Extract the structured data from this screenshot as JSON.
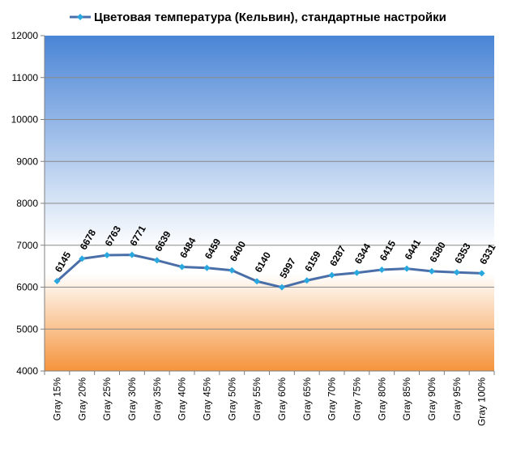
{
  "chart_data": {
    "type": "line",
    "title": "",
    "xlabel": "",
    "ylabel": "",
    "ylim": [
      4000,
      12000
    ],
    "yticks": [
      4000,
      5000,
      6000,
      7000,
      8000,
      9000,
      10000,
      11000,
      12000
    ],
    "grid": true,
    "legend_position": "top",
    "categories": [
      "Gray 15%",
      "Gray 20%",
      "Gray 25%",
      "Gray 30%",
      "Gray 35%",
      "Gray 40%",
      "Gray 45%",
      "Gray 50%",
      "Gray 55%",
      "Gray 60%",
      "Gray 65%",
      "Gray 70%",
      "Gray 75%",
      "Gray 80%",
      "Gray 85%",
      "Gray 90%",
      "Gray 95%",
      "Gray 100%"
    ],
    "series": [
      {
        "name": "Цветовая температура (Кельвин), стандартные настройки",
        "color": "#4a6fa8",
        "marker_color": "#29a8e0",
        "values": [
          6145,
          6678,
          6763,
          6771,
          6639,
          6484,
          6459,
          6400,
          6140,
          5997,
          6159,
          6287,
          6344,
          6415,
          6441,
          6380,
          6353,
          6331
        ]
      }
    ],
    "background": {
      "top_color": "#4a85d6",
      "mid_color": "#ffffff",
      "bottom_color": "#f5943c",
      "mid_value": 6800
    }
  }
}
